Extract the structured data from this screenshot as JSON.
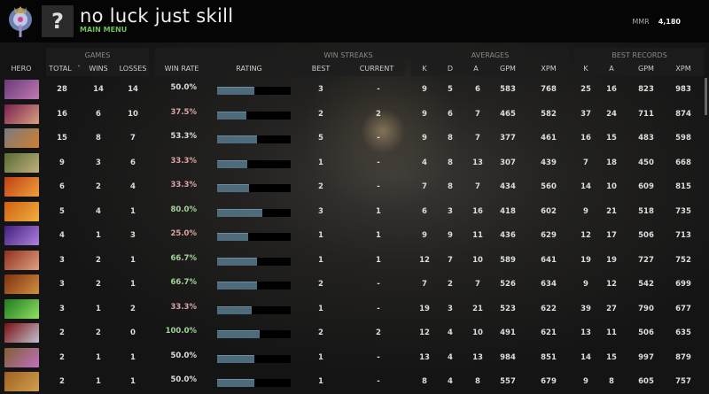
{
  "header": {
    "title": "no luck just skill",
    "subtitle": "MAIN MENU",
    "avatar_glyph": "?",
    "mmr_label": "MMR",
    "mmr_value": "4,180"
  },
  "groups": {
    "games": "GAMES",
    "win_streaks": "WIN STREAKS",
    "averages": "AVERAGES",
    "best_records": "BEST RECORDS"
  },
  "columns": {
    "hero": "HERO",
    "total": "TOTAL",
    "sort_glyph": "˅",
    "wins": "WINS",
    "losses": "LOSSES",
    "win_rate": "WIN RATE",
    "rating": "RATING",
    "best": "BEST",
    "current": "CURRENT",
    "avg_k": "K",
    "avg_d": "D",
    "avg_a": "A",
    "avg_gpm": "GPM",
    "avg_xpm": "XPM",
    "rec_k": "K",
    "rec_a": "A",
    "rec_gpm": "GPM",
    "rec_xpm": "XPM"
  },
  "colors": {
    "positive": "#a3d39a",
    "neutral": "#dddddd",
    "negative": "#d8a6a6",
    "rating_fill": "#4d6b7a",
    "accent": "#6fbf5a"
  },
  "rows": [
    {
      "hero_colors": [
        "#6a3a7a",
        "#c07ab0"
      ],
      "total": "28",
      "wins": "14",
      "losses": "14",
      "win_rate": "50.0%",
      "tone": "neutral",
      "rating": 0.51,
      "best": "3",
      "current": "-",
      "k": "9",
      "d": "5",
      "a": "6",
      "gpm": "583",
      "xpm": "768",
      "rk": "25",
      "ra": "16",
      "rgpm": "823",
      "rxpm": "983"
    },
    {
      "hero_colors": [
        "#7a2050",
        "#d8a080"
      ],
      "total": "16",
      "wins": "6",
      "losses": "10",
      "win_rate": "37.5%",
      "tone": "negative",
      "rating": 0.4,
      "best": "2",
      "current": "2",
      "k": "9",
      "d": "6",
      "a": "7",
      "gpm": "465",
      "xpm": "582",
      "rk": "37",
      "ra": "24",
      "rgpm": "711",
      "rxpm": "874"
    },
    {
      "hero_colors": [
        "#7a7a80",
        "#d08030"
      ],
      "total": "15",
      "wins": "8",
      "losses": "7",
      "win_rate": "53.3%",
      "tone": "neutral",
      "rating": 0.54,
      "best": "5",
      "current": "-",
      "k": "9",
      "d": "8",
      "a": "7",
      "gpm": "377",
      "xpm": "461",
      "rk": "16",
      "ra": "15",
      "rgpm": "483",
      "rxpm": "598"
    },
    {
      "hero_colors": [
        "#5a6a30",
        "#c0b080"
      ],
      "total": "9",
      "wins": "3",
      "losses": "6",
      "win_rate": "33.3%",
      "tone": "negative",
      "rating": 0.41,
      "best": "1",
      "current": "-",
      "k": "4",
      "d": "8",
      "a": "13",
      "gpm": "307",
      "xpm": "439",
      "rk": "7",
      "ra": "18",
      "rgpm": "450",
      "rxpm": "668"
    },
    {
      "hero_colors": [
        "#c04010",
        "#f0a040"
      ],
      "total": "6",
      "wins": "2",
      "losses": "4",
      "win_rate": "33.3%",
      "tone": "negative",
      "rating": 0.43,
      "best": "2",
      "current": "-",
      "k": "7",
      "d": "8",
      "a": "7",
      "gpm": "434",
      "xpm": "560",
      "rk": "14",
      "ra": "10",
      "rgpm": "609",
      "rxpm": "815"
    },
    {
      "hero_colors": [
        "#d06010",
        "#f0b040"
      ],
      "total": "5",
      "wins": "4",
      "losses": "1",
      "win_rate": "80.0%",
      "tone": "positive",
      "rating": 0.61,
      "best": "3",
      "current": "1",
      "k": "6",
      "d": "3",
      "a": "16",
      "gpm": "418",
      "xpm": "602",
      "rk": "9",
      "ra": "21",
      "rgpm": "518",
      "rxpm": "735"
    },
    {
      "hero_colors": [
        "#40207a",
        "#b080e0"
      ],
      "total": "4",
      "wins": "1",
      "losses": "3",
      "win_rate": "25.0%",
      "tone": "negative",
      "rating": 0.42,
      "best": "1",
      "current": "1",
      "k": "9",
      "d": "9",
      "a": "11",
      "gpm": "436",
      "xpm": "629",
      "rk": "12",
      "ra": "17",
      "rgpm": "506",
      "rxpm": "713"
    },
    {
      "hero_colors": [
        "#903020",
        "#e0a080"
      ],
      "total": "3",
      "wins": "2",
      "losses": "1",
      "win_rate": "66.7%",
      "tone": "positive",
      "rating": 0.54,
      "best": "1",
      "current": "1",
      "k": "12",
      "d": "7",
      "a": "10",
      "gpm": "589",
      "xpm": "641",
      "rk": "19",
      "ra": "19",
      "rgpm": "727",
      "rxpm": "752"
    },
    {
      "hero_colors": [
        "#803010",
        "#d09040"
      ],
      "total": "3",
      "wins": "2",
      "losses": "1",
      "win_rate": "66.7%",
      "tone": "positive",
      "rating": 0.54,
      "best": "2",
      "current": "-",
      "k": "7",
      "d": "2",
      "a": "7",
      "gpm": "526",
      "xpm": "634",
      "rk": "9",
      "ra": "12",
      "rgpm": "542",
      "rxpm": "699"
    },
    {
      "hero_colors": [
        "#207a20",
        "#90e060"
      ],
      "total": "3",
      "wins": "1",
      "losses": "2",
      "win_rate": "33.3%",
      "tone": "negative",
      "rating": 0.47,
      "best": "1",
      "current": "-",
      "k": "19",
      "d": "3",
      "a": "21",
      "gpm": "523",
      "xpm": "622",
      "rk": "39",
      "ra": "27",
      "rgpm": "790",
      "rxpm": "677"
    },
    {
      "hero_colors": [
        "#7a1010",
        "#c0c0d0"
      ],
      "total": "2",
      "wins": "2",
      "losses": "0",
      "win_rate": "100.0%",
      "tone": "positive",
      "rating": 0.58,
      "best": "2",
      "current": "2",
      "k": "12",
      "d": "4",
      "a": "10",
      "gpm": "491",
      "xpm": "621",
      "rk": "13",
      "ra": "11",
      "rgpm": "506",
      "rxpm": "635"
    },
    {
      "hero_colors": [
        "#806030",
        "#c070c0"
      ],
      "total": "2",
      "wins": "1",
      "losses": "1",
      "win_rate": "50.0%",
      "tone": "neutral",
      "rating": 0.51,
      "best": "1",
      "current": "-",
      "k": "13",
      "d": "4",
      "a": "13",
      "gpm": "984",
      "xpm": "851",
      "rk": "14",
      "ra": "15",
      "rgpm": "997",
      "rxpm": "879"
    },
    {
      "hero_colors": [
        "#a06020",
        "#d0a050"
      ],
      "total": "2",
      "wins": "1",
      "losses": "1",
      "win_rate": "50.0%",
      "tone": "neutral",
      "rating": 0.51,
      "best": "1",
      "current": "-",
      "k": "8",
      "d": "4",
      "a": "8",
      "gpm": "557",
      "xpm": "679",
      "rk": "9",
      "ra": "8",
      "rgpm": "605",
      "rxpm": "757"
    }
  ]
}
